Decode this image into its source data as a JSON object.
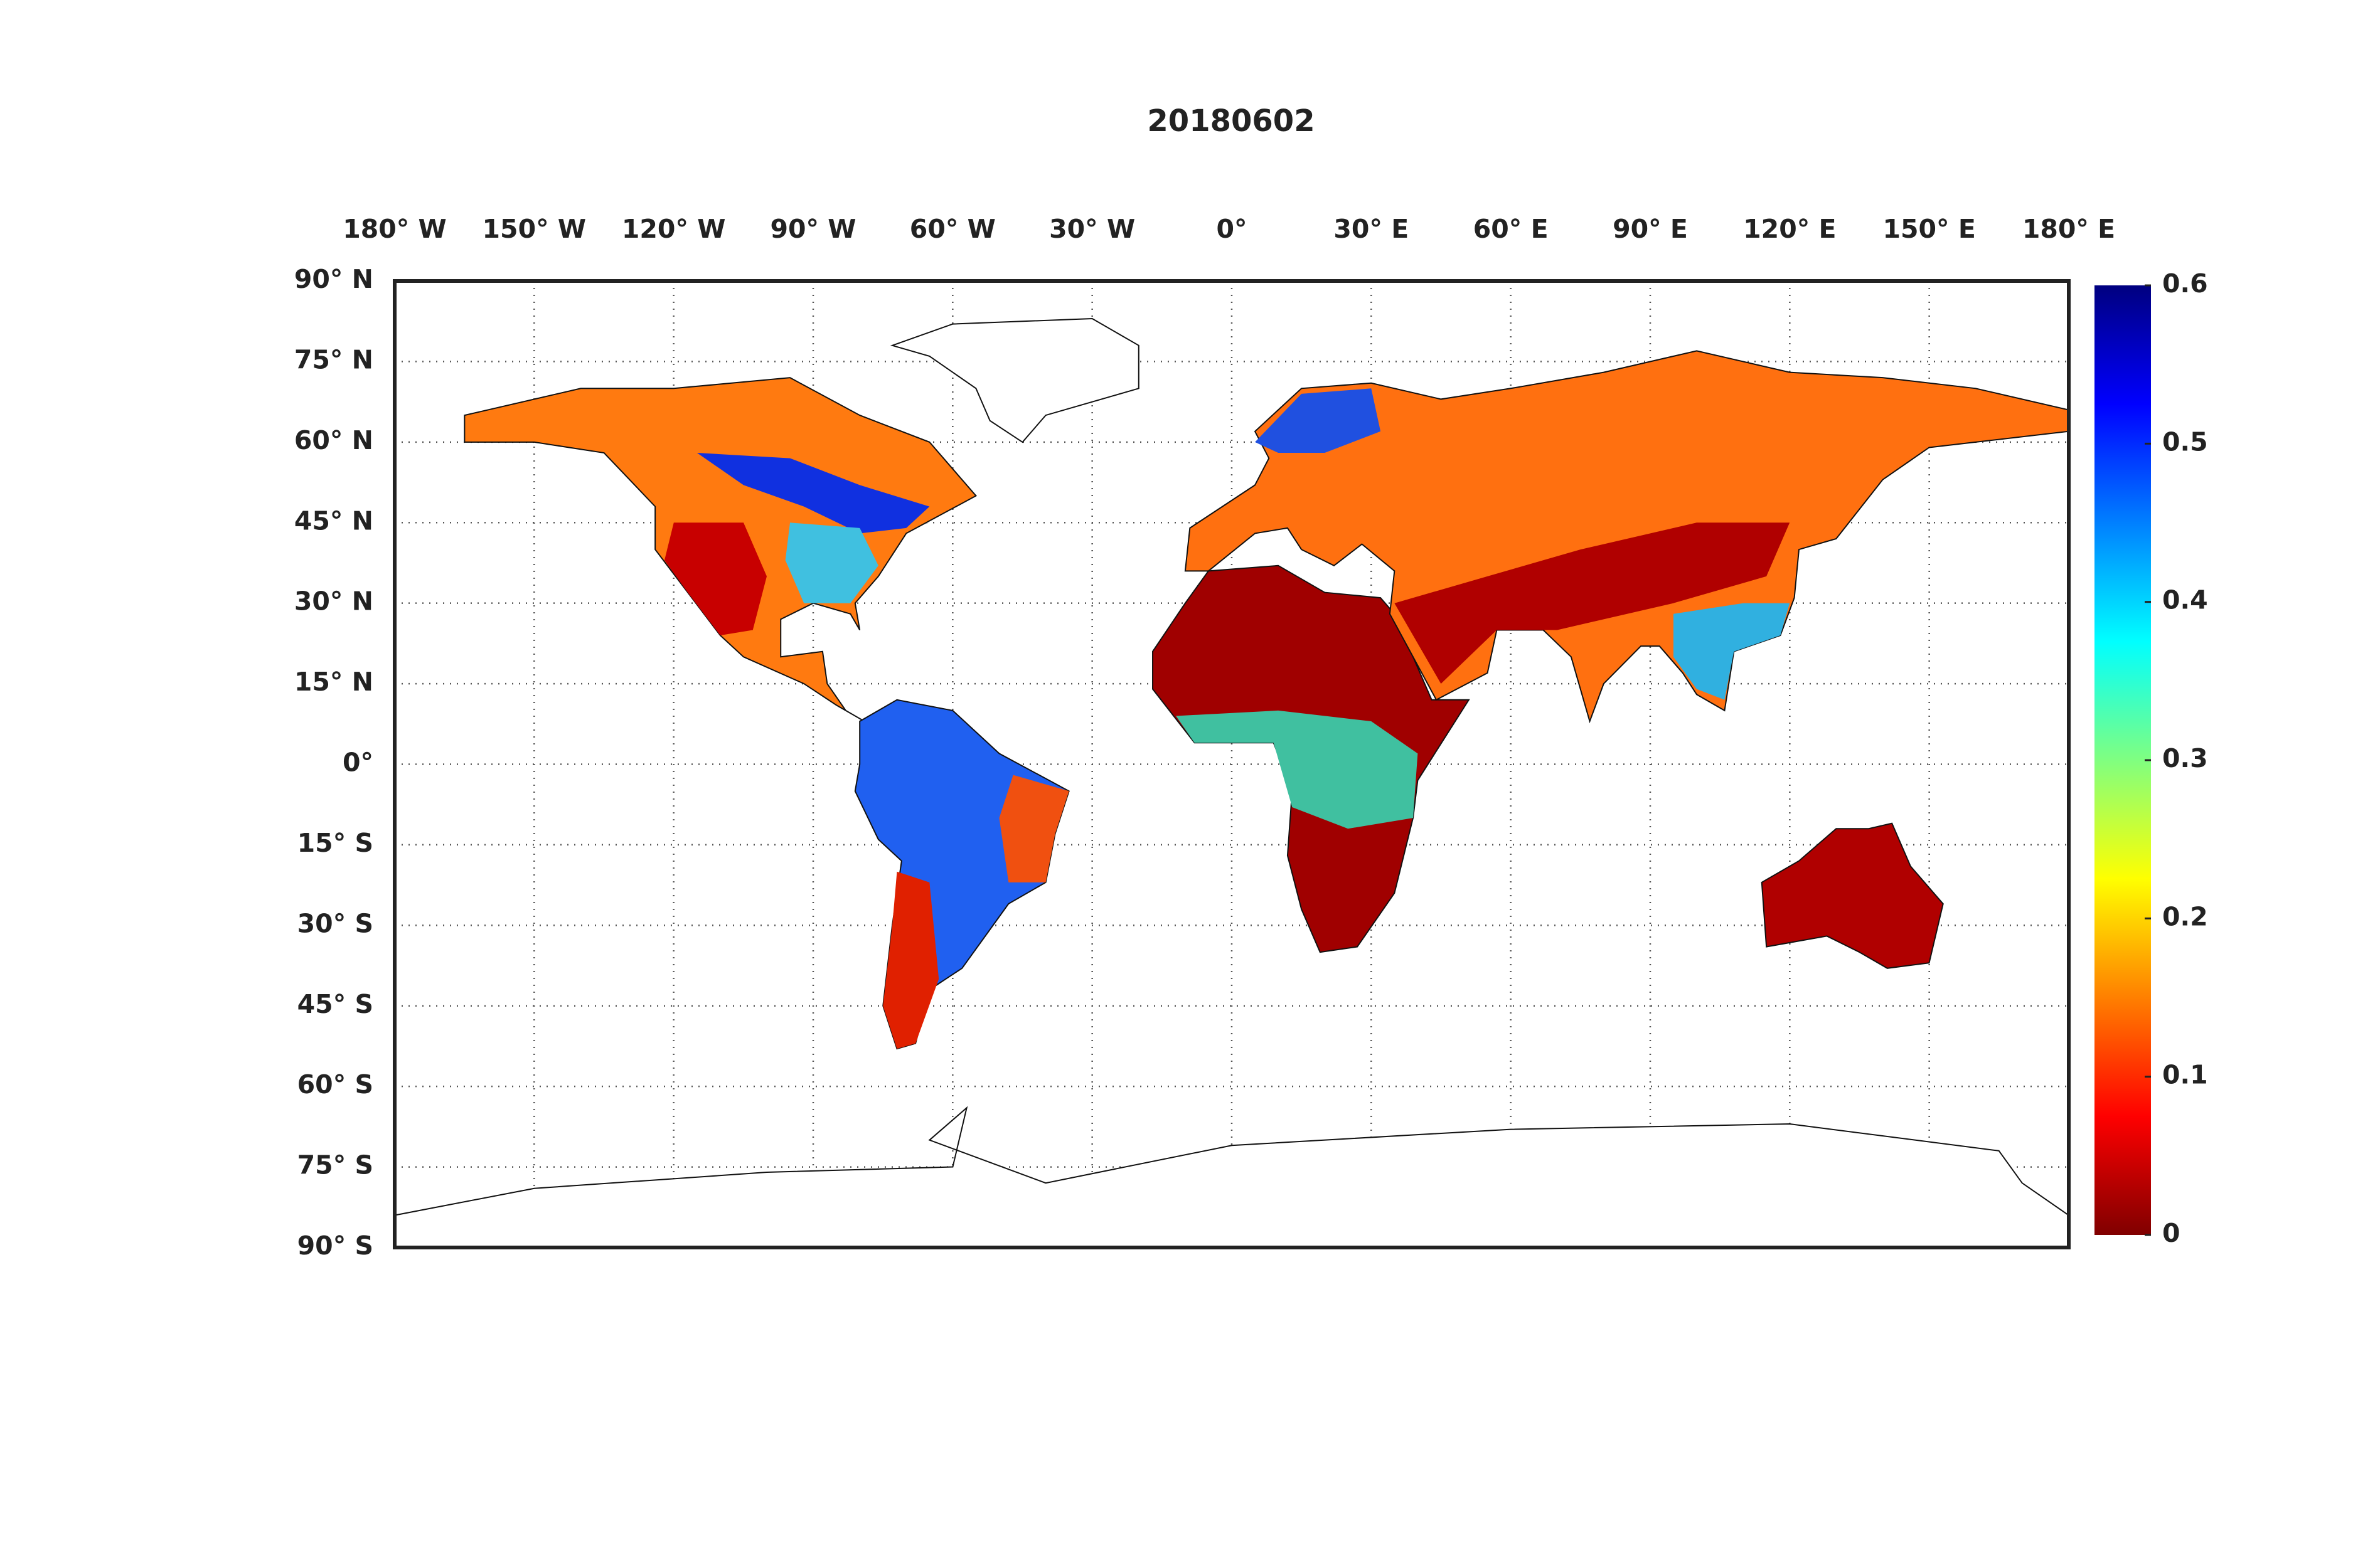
{
  "map": {
    "title": "20180602",
    "lon_ticks": [
      {
        "value": -180,
        "label": "180° W"
      },
      {
        "value": -150,
        "label": "150° W"
      },
      {
        "value": -120,
        "label": "120° W"
      },
      {
        "value": -90,
        "label": "90° W"
      },
      {
        "value": -60,
        "label": "60° W"
      },
      {
        "value": -30,
        "label": "30° W"
      },
      {
        "value": 0,
        "label": "0°"
      },
      {
        "value": 30,
        "label": "30° E"
      },
      {
        "value": 60,
        "label": "60° E"
      },
      {
        "value": 90,
        "label": "90° E"
      },
      {
        "value": 120,
        "label": "120° E"
      },
      {
        "value": 150,
        "label": "150° E"
      },
      {
        "value": 180,
        "label": "180° E"
      }
    ],
    "lat_ticks": [
      {
        "value": 90,
        "label": "90° N"
      },
      {
        "value": 75,
        "label": "75° N"
      },
      {
        "value": 60,
        "label": "60° N"
      },
      {
        "value": 45,
        "label": "45° N"
      },
      {
        "value": 30,
        "label": "30° N"
      },
      {
        "value": 15,
        "label": "15° N"
      },
      {
        "value": 0,
        "label": "0°"
      },
      {
        "value": -15,
        "label": "15° S"
      },
      {
        "value": -30,
        "label": "30° S"
      },
      {
        "value": -45,
        "label": "45° S"
      },
      {
        "value": -60,
        "label": "60° S"
      },
      {
        "value": -75,
        "label": "75° S"
      },
      {
        "value": -90,
        "label": "90° S"
      }
    ],
    "colorbar": {
      "colormap": "jet",
      "lim": [
        0,
        0.6
      ],
      "ticks": [
        0,
        0.1,
        0.2,
        0.3,
        0.4,
        0.5,
        0.6
      ]
    }
  }
}
